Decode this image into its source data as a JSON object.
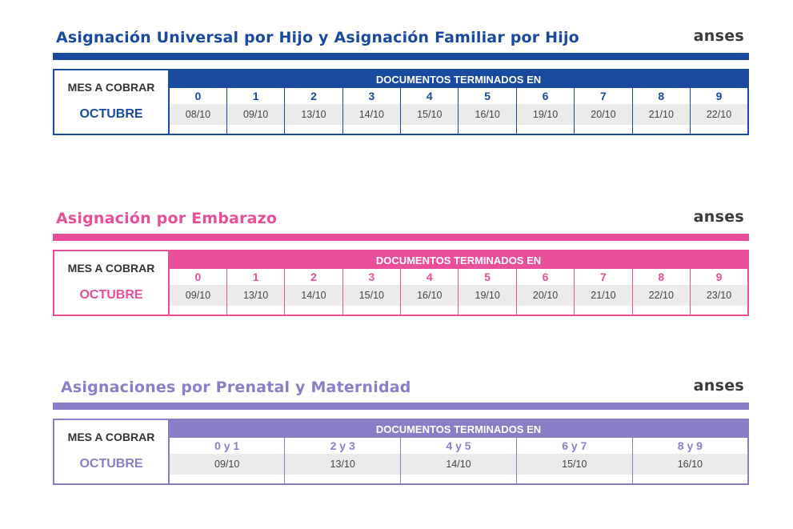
{
  "brand": "anses",
  "common": {
    "mes_label": "MES A COBRAR",
    "docs_header": "DOCUMENTOS TERMINADOS EN",
    "month": "OCTUBRE"
  },
  "sections": [
    {
      "title": "Asignación Universal por Hijo y Asignación Familiar por Hijo",
      "color": "#1a4aa0",
      "columns": [
        "0",
        "1",
        "2",
        "3",
        "4",
        "5",
        "6",
        "7",
        "8",
        "9"
      ],
      "dates": [
        "08/10",
        "09/10",
        "13/10",
        "14/10",
        "15/10",
        "16/10",
        "19/10",
        "20/10",
        "21/10",
        "22/10"
      ]
    },
    {
      "title": "Asignación por Embarazo",
      "color": "#e84e9a",
      "columns": [
        "0",
        "1",
        "2",
        "3",
        "4",
        "5",
        "6",
        "7",
        "8",
        "9"
      ],
      "dates": [
        "09/10",
        "13/10",
        "14/10",
        "15/10",
        "16/10",
        "19/10",
        "20/10",
        "21/10",
        "22/10",
        "23/10"
      ]
    },
    {
      "title": "Asignaciones por Prenatal y Maternidad",
      "color": "#8a7fc6",
      "columns": [
        "0 y 1",
        "2 y 3",
        "4 y 5",
        "6 y 7",
        "8 y 9"
      ],
      "dates": [
        "09/10",
        "13/10",
        "14/10",
        "15/10",
        "16/10"
      ]
    }
  ]
}
